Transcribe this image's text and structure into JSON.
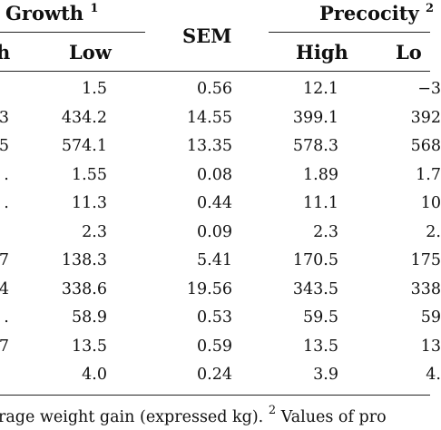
{
  "header": {
    "growth_label": "Growth",
    "growth_note": "1",
    "sem_label": "SEM",
    "precocity_label": "Precocity",
    "precocity_note": "2",
    "sub_high_left": "h",
    "sub_low_left": "Low",
    "sub_high_right": "High",
    "sub_low_right": "Lo"
  },
  "rows": [
    {
      "c0": "",
      "c1": "1.5",
      "c2": "0.56",
      "c3": "12.1",
      "c4": "−3"
    },
    {
      "c0": "3",
      "c1": "434.2",
      "c2": "14.55",
      "c3": "399.1",
      "c4": "392"
    },
    {
      "c0": "5",
      "c1": "574.1",
      "c2": "13.35",
      "c3": "578.3",
      "c4": "568"
    },
    {
      "c0": "․",
      "c1": "1.55",
      "c2": "0.08",
      "c3": "1.89",
      "c4": "1.7"
    },
    {
      "c0": "․",
      "c1": "11.3",
      "c2": "0.44",
      "c3": "11.1",
      "c4": "10"
    },
    {
      "c0": "",
      "c1": "2.3",
      "c2": "0.09",
      "c3": "2.3",
      "c4": "2."
    },
    {
      "c0": "7",
      "c1": "138.3",
      "c2": "5.41",
      "c3": "170.5",
      "c4": "175"
    },
    {
      "c0": "4",
      "c1": "338.6",
      "c2": "19.56",
      "c3": "343.5",
      "c4": "338"
    },
    {
      "c0": "․",
      "c1": "58.9",
      "c2": "0.53",
      "c3": "59.5",
      "c4": "59"
    },
    {
      "c0": "7",
      "c1": "13.5",
      "c2": "0.59",
      "c3": "13.5",
      "c4": "13"
    },
    {
      "c0": "",
      "c1": "4.0",
      "c2": "0.24",
      "c3": "3.9",
      "c4": "4."
    }
  ],
  "footnote": {
    "text_a": "rage weight gain (expressed kg).",
    "note2": "2",
    "text_b": "Values of pro"
  }
}
